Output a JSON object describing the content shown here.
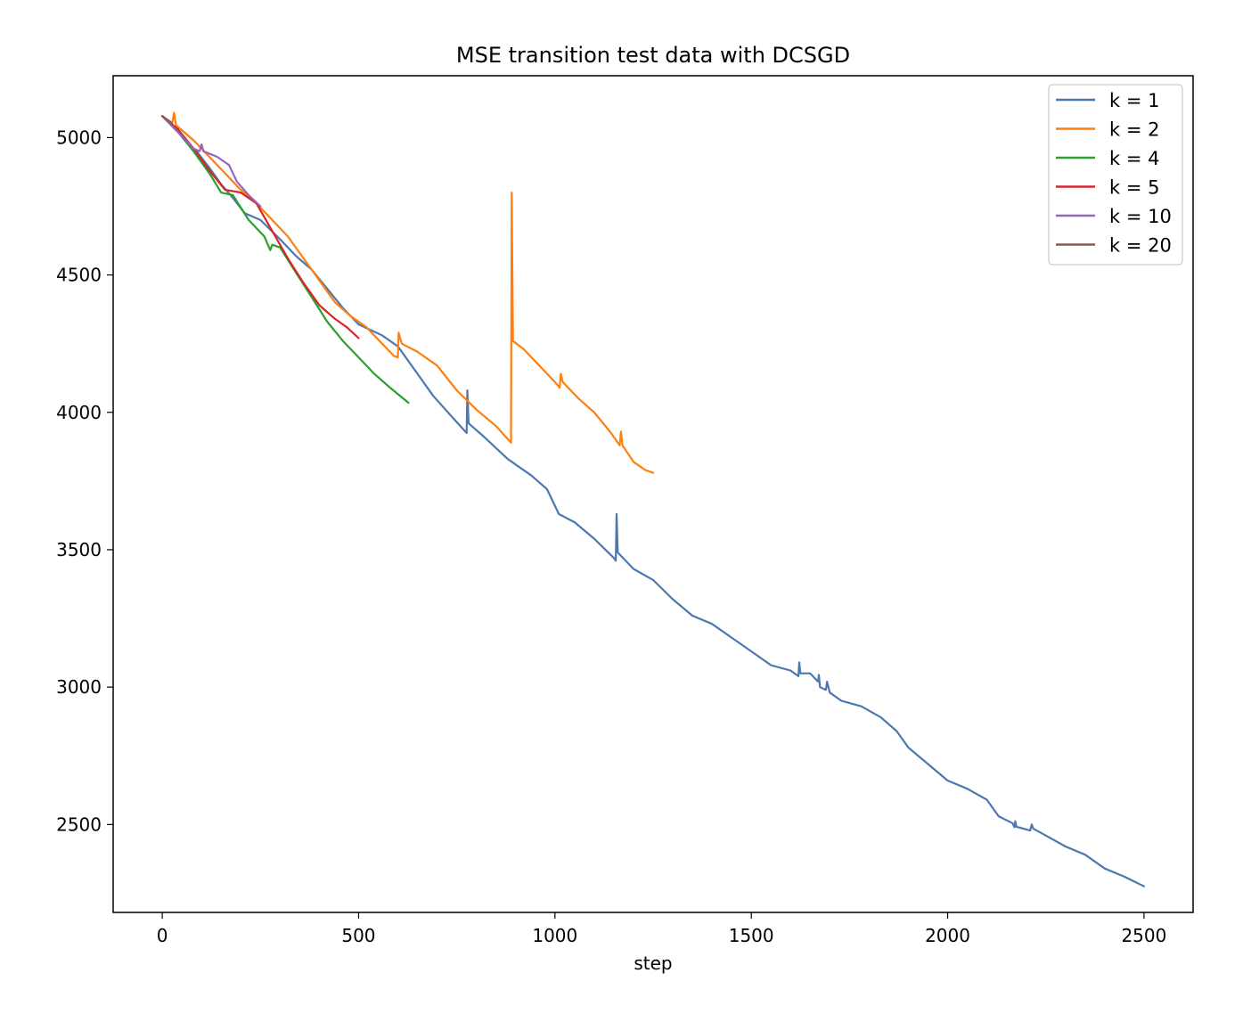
{
  "chart_data": {
    "type": "line",
    "title": "MSE transition test data with DCSGD",
    "xlabel": "step",
    "ylabel": "",
    "xlim": [
      -125,
      2625
    ],
    "ylim": [
      2180,
      5225
    ],
    "xticks": [
      0,
      500,
      1000,
      1500,
      2000,
      2500
    ],
    "yticks": [
      2500,
      3000,
      3500,
      4000,
      4500,
      5000
    ],
    "grid": false,
    "legend_position": "top-right",
    "series": [
      {
        "name": "k = 1",
        "color": "#4c78b0",
        "points": [
          [
            0,
            5078
          ],
          [
            30,
            5040
          ],
          [
            60,
            4990
          ],
          [
            90,
            4945
          ],
          [
            120,
            4890
          ],
          [
            150,
            4830
          ],
          [
            180,
            4780
          ],
          [
            210,
            4725
          ],
          [
            250,
            4700
          ],
          [
            300,
            4630
          ],
          [
            340,
            4570
          ],
          [
            380,
            4520
          ],
          [
            420,
            4450
          ],
          [
            460,
            4380
          ],
          [
            500,
            4320
          ],
          [
            560,
            4280
          ],
          [
            600,
            4240
          ],
          [
            640,
            4160
          ],
          [
            690,
            4060
          ],
          [
            740,
            3980
          ],
          [
            775,
            3925
          ],
          [
            777,
            4080
          ],
          [
            780,
            3960
          ],
          [
            820,
            3910
          ],
          [
            880,
            3830
          ],
          [
            940,
            3770
          ],
          [
            980,
            3720
          ],
          [
            1010,
            3630
          ],
          [
            1050,
            3600
          ],
          [
            1100,
            3540
          ],
          [
            1150,
            3470
          ],
          [
            1155,
            3460
          ],
          [
            1157,
            3630
          ],
          [
            1160,
            3490
          ],
          [
            1200,
            3430
          ],
          [
            1250,
            3390
          ],
          [
            1300,
            3320
          ],
          [
            1350,
            3260
          ],
          [
            1400,
            3230
          ],
          [
            1450,
            3180
          ],
          [
            1500,
            3130
          ],
          [
            1550,
            3080
          ],
          [
            1600,
            3060
          ],
          [
            1620,
            3040
          ],
          [
            1622,
            3090
          ],
          [
            1625,
            3050
          ],
          [
            1650,
            3050
          ],
          [
            1670,
            3020
          ],
          [
            1672,
            3045
          ],
          [
            1675,
            3000
          ],
          [
            1690,
            2990
          ],
          [
            1693,
            3020
          ],
          [
            1700,
            2980
          ],
          [
            1730,
            2950
          ],
          [
            1780,
            2930
          ],
          [
            1830,
            2890
          ],
          [
            1870,
            2840
          ],
          [
            1900,
            2780
          ],
          [
            1950,
            2720
          ],
          [
            2000,
            2660
          ],
          [
            2050,
            2630
          ],
          [
            2100,
            2590
          ],
          [
            2130,
            2530
          ],
          [
            2165,
            2505
          ],
          [
            2170,
            2490
          ],
          [
            2172,
            2512
          ],
          [
            2175,
            2492
          ],
          [
            2210,
            2478
          ],
          [
            2214,
            2500
          ],
          [
            2218,
            2485
          ],
          [
            2250,
            2460
          ],
          [
            2300,
            2420
          ],
          [
            2350,
            2390
          ],
          [
            2400,
            2340
          ],
          [
            2450,
            2310
          ],
          [
            2500,
            2275
          ]
        ]
      },
      {
        "name": "k = 2",
        "color": "#ff7f0e",
        "points": [
          [
            0,
            5078
          ],
          [
            25,
            5050
          ],
          [
            30,
            5090
          ],
          [
            35,
            5045
          ],
          [
            80,
            4990
          ],
          [
            120,
            4930
          ],
          [
            160,
            4870
          ],
          [
            200,
            4810
          ],
          [
            240,
            4760
          ],
          [
            280,
            4700
          ],
          [
            320,
            4640
          ],
          [
            360,
            4560
          ],
          [
            400,
            4480
          ],
          [
            440,
            4400
          ],
          [
            480,
            4350
          ],
          [
            520,
            4310
          ],
          [
            560,
            4250
          ],
          [
            590,
            4205
          ],
          [
            600,
            4200
          ],
          [
            602,
            4290
          ],
          [
            610,
            4250
          ],
          [
            650,
            4220
          ],
          [
            700,
            4170
          ],
          [
            750,
            4080
          ],
          [
            800,
            4010
          ],
          [
            850,
            3950
          ],
          [
            888,
            3890
          ],
          [
            890,
            4800
          ],
          [
            893,
            4260
          ],
          [
            920,
            4230
          ],
          [
            960,
            4170
          ],
          [
            1000,
            4110
          ],
          [
            1012,
            4090
          ],
          [
            1015,
            4140
          ],
          [
            1020,
            4110
          ],
          [
            1060,
            4050
          ],
          [
            1100,
            4000
          ],
          [
            1140,
            3930
          ],
          [
            1165,
            3880
          ],
          [
            1168,
            3930
          ],
          [
            1172,
            3880
          ],
          [
            1200,
            3820
          ],
          [
            1230,
            3790
          ],
          [
            1250,
            3780
          ]
        ]
      },
      {
        "name": "k = 4",
        "color": "#2ca02c",
        "points": [
          [
            0,
            5078
          ],
          [
            40,
            5020
          ],
          [
            80,
            4950
          ],
          [
            120,
            4870
          ],
          [
            150,
            4800
          ],
          [
            180,
            4790
          ],
          [
            220,
            4700
          ],
          [
            260,
            4640
          ],
          [
            275,
            4590
          ],
          [
            280,
            4610
          ],
          [
            300,
            4600
          ],
          [
            340,
            4510
          ],
          [
            380,
            4420
          ],
          [
            420,
            4330
          ],
          [
            460,
            4260
          ],
          [
            500,
            4200
          ],
          [
            540,
            4140
          ],
          [
            580,
            4090
          ],
          [
            627,
            4035
          ]
        ]
      },
      {
        "name": "k = 5",
        "color": "#d62728",
        "points": [
          [
            0,
            5078
          ],
          [
            40,
            5030
          ],
          [
            80,
            4960
          ],
          [
            120,
            4880
          ],
          [
            160,
            4810
          ],
          [
            200,
            4800
          ],
          [
            240,
            4760
          ],
          [
            280,
            4660
          ],
          [
            320,
            4560
          ],
          [
            360,
            4470
          ],
          [
            400,
            4390
          ],
          [
            440,
            4340
          ],
          [
            470,
            4310
          ],
          [
            500,
            4270
          ]
        ]
      },
      {
        "name": "k = 10",
        "color": "#9467bd",
        "points": [
          [
            0,
            5078
          ],
          [
            40,
            5020
          ],
          [
            80,
            4960
          ],
          [
            95,
            4950
          ],
          [
            100,
            4975
          ],
          [
            105,
            4950
          ],
          [
            140,
            4930
          ],
          [
            170,
            4900
          ],
          [
            190,
            4840
          ],
          [
            220,
            4790
          ],
          [
            250,
            4750
          ]
        ]
      },
      {
        "name": "k = 20",
        "color": "#8c564b",
        "points": [
          [
            0,
            5078
          ],
          [
            10,
            5068
          ],
          [
            20,
            5058
          ],
          [
            25,
            5050
          ]
        ]
      }
    ]
  }
}
